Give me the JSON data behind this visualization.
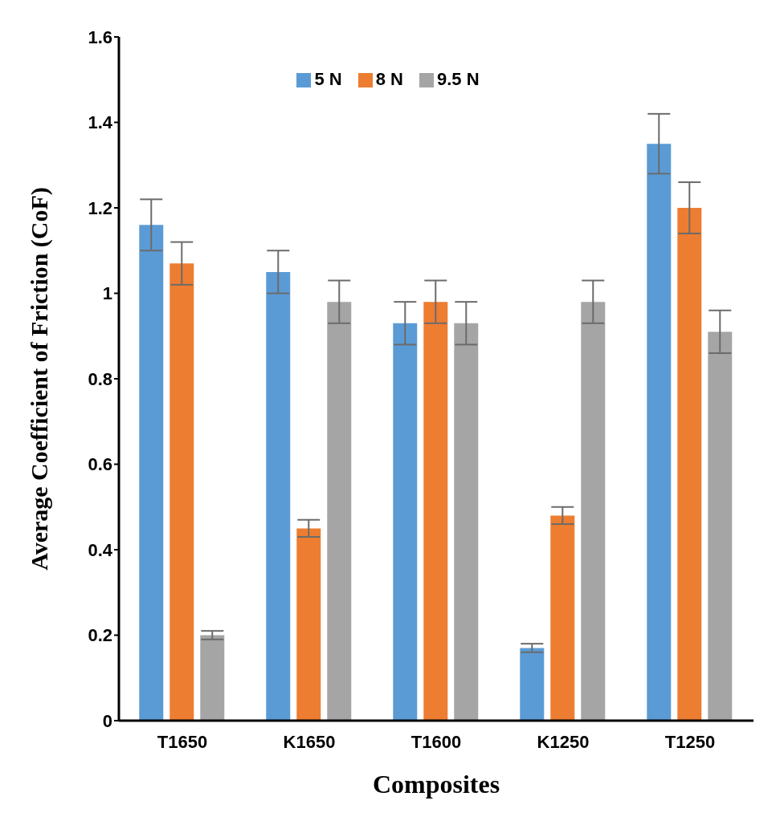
{
  "chart_data": {
    "type": "bar",
    "xlabel": "Composites",
    "ylabel": "Average  Coefficient of Friction (CoF)",
    "categories": [
      "T1650",
      "K1650",
      "T1600",
      "K1250",
      "T1250"
    ],
    "series": [
      {
        "name": "5 N",
        "color": "#5b9bd5",
        "values": [
          1.16,
          1.05,
          0.93,
          0.17,
          1.35
        ],
        "errors": [
          0.06,
          0.05,
          0.05,
          0.01,
          0.07
        ]
      },
      {
        "name": "8 N",
        "color": "#ed7d31",
        "values": [
          1.07,
          0.45,
          0.98,
          0.48,
          1.2
        ],
        "errors": [
          0.05,
          0.02,
          0.05,
          0.02,
          0.06
        ]
      },
      {
        "name": "9.5 N",
        "color": "#a5a5a5",
        "values": [
          0.2,
          0.98,
          0.93,
          0.98,
          0.91
        ],
        "errors": [
          0.01,
          0.05,
          0.05,
          0.05,
          0.05
        ]
      }
    ],
    "ylim": [
      0,
      1.6
    ],
    "yticks": [
      0,
      0.2,
      0.4,
      0.6,
      0.8,
      1,
      1.2,
      1.4,
      1.6
    ],
    "grid": false,
    "legend": "top"
  }
}
